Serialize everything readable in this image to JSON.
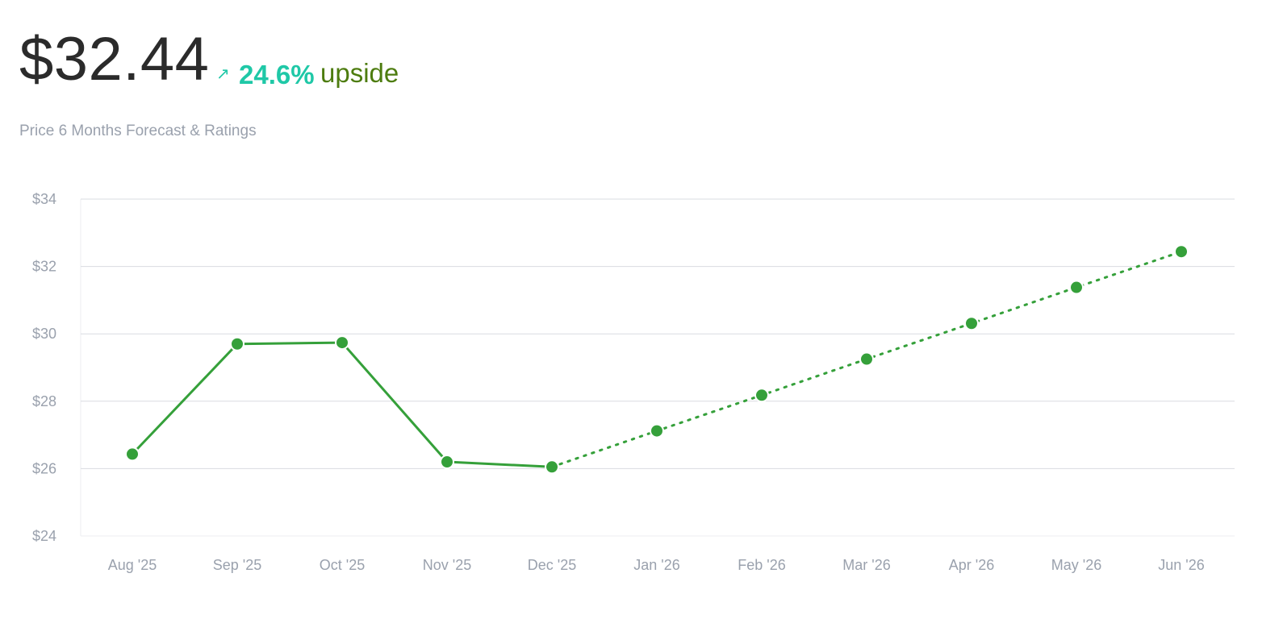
{
  "header": {
    "price": "$32.44",
    "arrow_icon": "arrow-up-right-icon",
    "upside_percent": "24.6%",
    "upside_word": "upside",
    "subtitle": "Price 6 Months Forecast & Ratings"
  },
  "colors": {
    "accent_teal": "#1fc8a7",
    "upside_green": "#4d7c0f",
    "series_green": "#35a03a",
    "grid": "#d9dce1",
    "axis_text": "#9aa1ad"
  },
  "chart_data": {
    "type": "line",
    "title": "",
    "xlabel": "",
    "ylabel": "",
    "categories": [
      "Aug '25",
      "Sep '25",
      "Oct '25",
      "Nov '25",
      "Dec '25",
      "Jan '26",
      "Feb '26",
      "Mar '26",
      "Apr '26",
      "May '26",
      "Jun '26"
    ],
    "ylim": [
      24,
      34
    ],
    "yticks": [
      24,
      26,
      28,
      30,
      32,
      34
    ],
    "ytick_labels": [
      "$24",
      "$26",
      "$28",
      "$30",
      "$32",
      "$34"
    ],
    "grid": true,
    "series": [
      {
        "style": "solid",
        "x": [
          "Aug '25",
          "Sep '25",
          "Oct '25",
          "Nov '25",
          "Dec '25"
        ],
        "values": [
          26.43,
          29.7,
          29.74,
          26.2,
          26.05
        ]
      },
      {
        "style": "dotted",
        "x": [
          "Dec '25",
          "Jan '26",
          "Feb '26",
          "Mar '26",
          "Apr '26",
          "May '26",
          "Jun '26"
        ],
        "values": [
          26.05,
          27.12,
          28.18,
          29.25,
          30.31,
          31.38,
          32.44
        ]
      }
    ]
  }
}
